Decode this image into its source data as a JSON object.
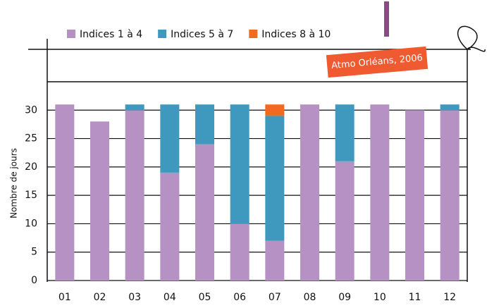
{
  "chart_data": {
    "type": "stacked-bar",
    "y_label": "Nombre de jours",
    "annotation": "Atmo Orléans, 2006",
    "categories": [
      "01",
      "02",
      "03",
      "04",
      "05",
      "06",
      "07",
      "08",
      "09",
      "10",
      "11",
      "12"
    ],
    "series": [
      {
        "name": "Indices 1 à 4",
        "color": "#b591c4",
        "values": [
          31,
          28,
          30,
          19,
          24,
          10,
          7,
          31,
          21,
          31,
          30,
          30
        ]
      },
      {
        "name": "Indices 5 à 7",
        "color": "#3f98bd",
        "values": [
          0,
          0,
          1,
          12,
          7,
          21,
          22,
          0,
          10,
          0,
          0,
          1
        ]
      },
      {
        "name": "Indices 8 à 10",
        "color": "#f26a21",
        "values": [
          0,
          0,
          0,
          0,
          0,
          0,
          2,
          0,
          0,
          0,
          0,
          0
        ]
      }
    ],
    "ylim": [
      0,
      35
    ],
    "yticks": [
      0,
      5,
      10,
      15,
      20,
      25,
      30
    ],
    "grid": true,
    "legend": "top"
  }
}
